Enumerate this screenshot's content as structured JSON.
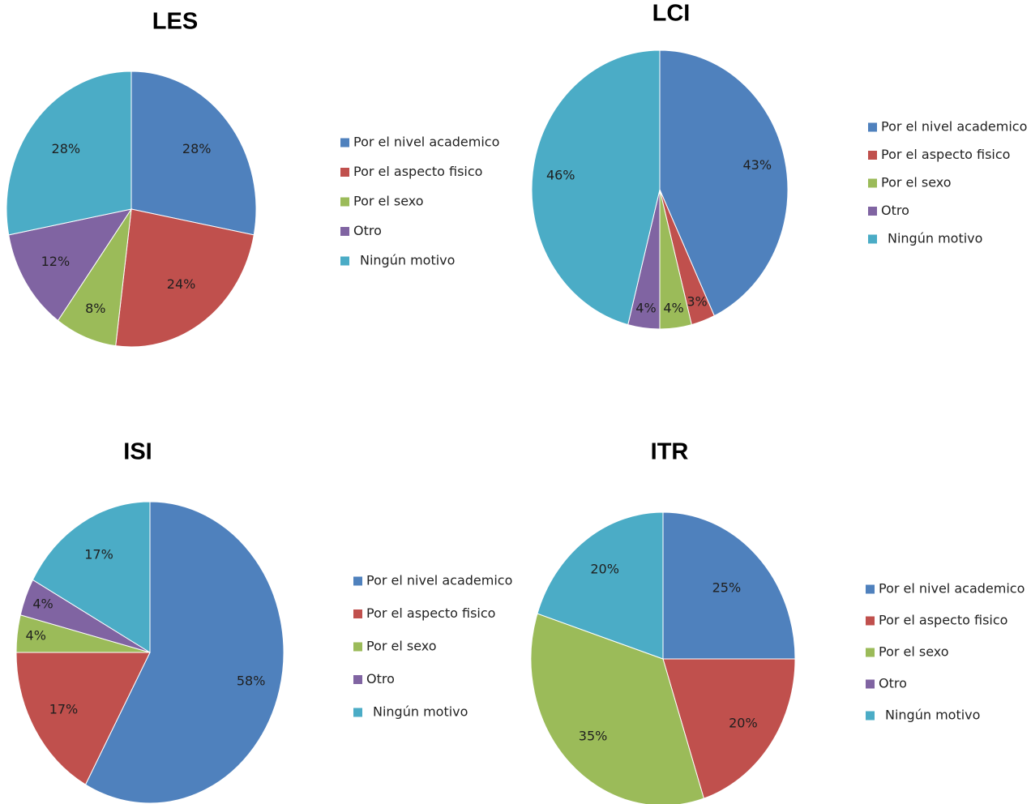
{
  "colors": {
    "Por el nivel academico": "#4F81BD",
    "Por el aspecto  fisico": "#C0504D",
    "Por el sexo": "#9BBB59",
    "Otro": "#8064A2",
    "Ningún motivo": "#4BACC6"
  },
  "chart_data": [
    {
      "type": "pie",
      "title": "LES",
      "categories": [
        "Por el nivel academico",
        "Por el aspecto  fisico",
        "Por el sexo",
        "Otro",
        "Ningún motivo"
      ],
      "values": [
        28,
        24,
        8,
        12,
        28
      ],
      "labels": [
        "28%",
        "24%",
        "8%",
        "12%",
        "28%"
      ],
      "legend": "right"
    },
    {
      "type": "pie",
      "title": "LCI",
      "categories": [
        "Por el nivel academico",
        "Por el aspecto  fisico",
        "Por el sexo",
        "Otro",
        "Ningún motivo"
      ],
      "values": [
        43,
        3,
        4,
        4,
        46
      ],
      "labels": [
        "43%",
        "3%",
        "4%",
        "4%",
        "46%"
      ],
      "legend": "right"
    },
    {
      "type": "pie",
      "title": "ISI",
      "categories": [
        "Por el nivel academico",
        "Por el aspecto  fisico",
        "Por el sexo",
        "Otro",
        "Ningún motivo"
      ],
      "values": [
        58,
        17,
        4,
        4,
        17
      ],
      "labels": [
        "58%",
        "17%",
        "4%",
        "4%",
        "17%"
      ],
      "legend": "right"
    },
    {
      "type": "pie",
      "title": "ITR",
      "categories": [
        "Por el nivel academico",
        "Por el aspecto  fisico",
        "Por el sexo",
        "Otro",
        "Ningún motivo"
      ],
      "values": [
        25,
        20,
        35,
        0,
        20
      ],
      "labels": [
        "25%",
        "20%",
        "35%",
        "",
        "20%"
      ],
      "legend": "right"
    }
  ]
}
